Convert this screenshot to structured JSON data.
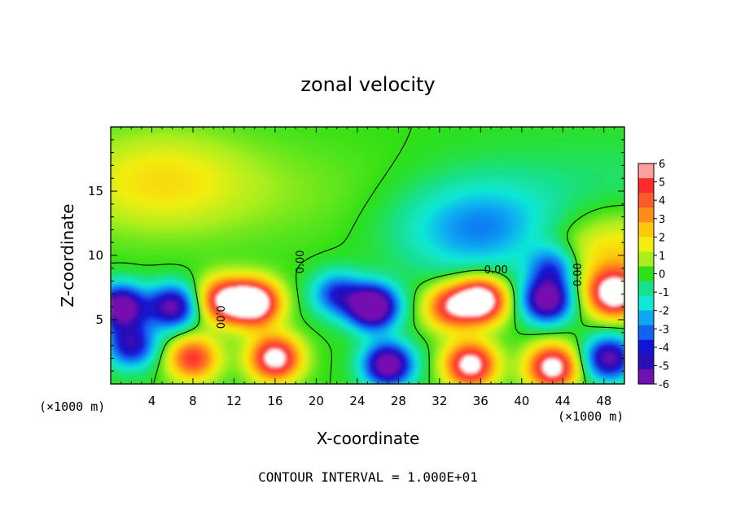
{
  "chart_data": {
    "type": "heatmap",
    "title": "zonal velocity",
    "xlabel": "X-coordinate",
    "ylabel": "Z-coordinate",
    "x_unit_label": "(×1000 m)",
    "x_unit_label_right": "(×1000 m)",
    "footer": "CONTOUR INTERVAL = 1.000E+01",
    "xlim": [
      0,
      50
    ],
    "ylim": [
      0,
      20
    ],
    "x_ticks": [
      4,
      8,
      12,
      16,
      20,
      24,
      28,
      32,
      36,
      40,
      44,
      48
    ],
    "y_ticks": [
      5,
      10,
      15
    ],
    "colorbar": {
      "range": [
        -6,
        6
      ],
      "ticks": [
        6,
        5,
        4,
        3,
        2,
        1,
        0,
        -1,
        -2,
        -3,
        -4,
        -5,
        -6
      ],
      "colors": [
        "#ff9f9f",
        "#ff2a2a",
        "#ff5a2a",
        "#ff8c1a",
        "#ffc80a",
        "#f2ee10",
        "#aaee20",
        "#2ee018",
        "#18e08e",
        "#10e8d6",
        "#10a6f4",
        "#1264f0",
        "#1414d6",
        "#2a10b4",
        "#7010b4"
      ]
    },
    "contour_level_label": "0.00",
    "features": [
      {
        "name": "negative core",
        "x": 1,
        "z": 6,
        "value": -7
      },
      {
        "name": "negative core",
        "x": 6,
        "z": 6,
        "value": -6
      },
      {
        "name": "negative core",
        "x": 2,
        "z": 3,
        "value": -5
      },
      {
        "name": "positive core",
        "x": 14,
        "z": 6.3,
        "value": 8
      },
      {
        "name": "positive core",
        "x": 11,
        "z": 6.5,
        "value": 6
      },
      {
        "name": "positive core",
        "x": 16,
        "z": 2,
        "value": 7
      },
      {
        "name": "positive core",
        "x": 8,
        "z": 2,
        "value": 5
      },
      {
        "name": "negative core",
        "x": 25.5,
        "z": 6,
        "value": -8
      },
      {
        "name": "negative core",
        "x": 22,
        "z": 7,
        "value": -4
      },
      {
        "name": "negative core",
        "x": 27,
        "z": 1.5,
        "value": -7
      },
      {
        "name": "positive core",
        "x": 36,
        "z": 6.5,
        "value": 8
      },
      {
        "name": "positive core",
        "x": 33,
        "z": 6,
        "value": 5
      },
      {
        "name": "positive core",
        "x": 35,
        "z": 1.5,
        "value": 7
      },
      {
        "name": "negative core",
        "x": 42.5,
        "z": 6.5,
        "value": -7
      },
      {
        "name": "negative core",
        "x": 43,
        "z": 9,
        "value": -4
      },
      {
        "name": "positive core",
        "x": 43,
        "z": 1.3,
        "value": 7
      },
      {
        "name": "positive core",
        "x": 49,
        "z": 7,
        "value": 7
      },
      {
        "name": "negative core",
        "x": 48.5,
        "z": 2,
        "value": -6
      },
      {
        "name": "upper negative region",
        "x": 36,
        "z": 12,
        "value": -3
      },
      {
        "name": "upper positive region",
        "x": 5,
        "z": 16,
        "value": 1.5
      },
      {
        "name": "upper positive region",
        "x": 49,
        "z": 10,
        "value": 2.5
      }
    ]
  }
}
